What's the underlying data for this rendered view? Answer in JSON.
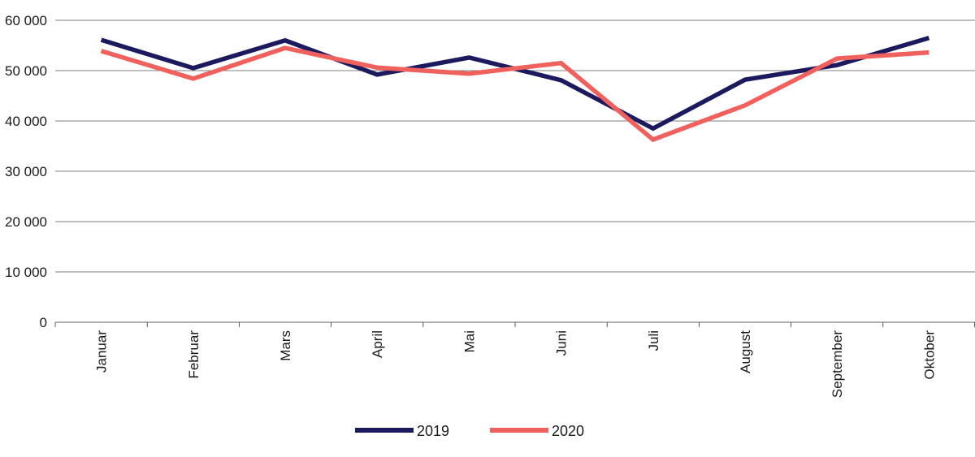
{
  "chart_data": {
    "type": "line",
    "title": "",
    "xlabel": "",
    "ylabel": "",
    "categories": [
      "Januar",
      "Februar",
      "Mars",
      "April",
      "Mai",
      "Juni",
      "Juli",
      "August",
      "September",
      "Oktober"
    ],
    "ylim": [
      0,
      60000
    ],
    "yticks": [
      0,
      10000,
      20000,
      30000,
      40000,
      50000,
      60000
    ],
    "ytick_labels": [
      "0",
      "10 000",
      "20 000",
      "30 000",
      "40 000",
      "50 000",
      "60 000"
    ],
    "grid": true,
    "legend_position": "bottom",
    "series": [
      {
        "name": "2019",
        "color": "#1c1a5e",
        "values": [
          56100,
          50500,
          56000,
          49200,
          52600,
          48100,
          38500,
          48200,
          51100,
          56500
        ]
      },
      {
        "name": "2020",
        "color": "#f0605d",
        "values": [
          53900,
          48400,
          54500,
          50600,
          49400,
          51500,
          36300,
          43100,
          52400,
          53600
        ]
      }
    ]
  }
}
